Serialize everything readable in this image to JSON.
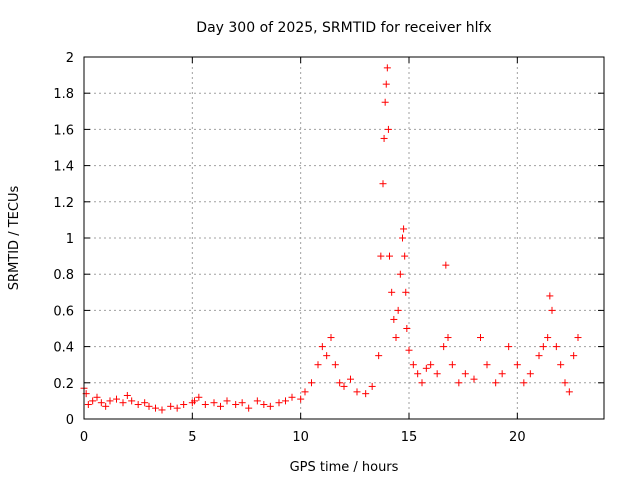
{
  "chart_data": {
    "type": "scatter",
    "title": "Day 300 of 2025, SRMTID for receiver hlfx",
    "xlabel": "GPS time / hours",
    "ylabel": "SRMTID / TECUs",
    "xlim": [
      0,
      24
    ],
    "ylim": [
      0,
      2
    ],
    "x_ticks": [
      0,
      5,
      10,
      15,
      20
    ],
    "x_tick_labels": [
      "0",
      "5",
      "10",
      "15",
      "20"
    ],
    "y_ticks": [
      0,
      0.2,
      0.4,
      0.6,
      0.8,
      1,
      1.2,
      1.4,
      1.6,
      1.8,
      2
    ],
    "y_tick_labels": [
      "0",
      "0.2",
      "0.4",
      "0.6",
      "0.8",
      "1",
      "1.2",
      "1.4",
      "1.6",
      "1.8",
      "2"
    ],
    "grid": true,
    "marker": "+",
    "series": [
      {
        "name": "SRMTID",
        "color": "#ff0000",
        "x": [
          0.0,
          0.1,
          0.2,
          0.4,
          0.6,
          0.8,
          1.0,
          1.2,
          1.5,
          1.8,
          2.0,
          2.2,
          2.5,
          2.8,
          3.0,
          3.3,
          3.6,
          4.0,
          4.3,
          4.6,
          5.0,
          5.1,
          5.3,
          5.6,
          6.0,
          6.3,
          6.6,
          7.0,
          7.3,
          7.6,
          8.0,
          8.3,
          8.6,
          9.0,
          9.3,
          9.6,
          10.0,
          10.2,
          10.5,
          10.8,
          11.0,
          11.2,
          11.4,
          11.6,
          11.8,
          12.0,
          12.3,
          12.6,
          13.0,
          13.3,
          13.6,
          13.7,
          13.8,
          13.85,
          13.9,
          13.95,
          14.0,
          14.05,
          14.1,
          14.2,
          14.3,
          14.4,
          14.5,
          14.6,
          14.7,
          14.75,
          14.8,
          14.85,
          14.9,
          15.0,
          15.2,
          15.4,
          15.6,
          15.8,
          16.0,
          16.3,
          16.6,
          16.7,
          16.8,
          17.0,
          17.3,
          17.6,
          18.0,
          18.3,
          18.6,
          19.0,
          19.3,
          19.6,
          20.0,
          20.3,
          20.6,
          21.0,
          21.2,
          21.4,
          21.5,
          21.6,
          21.8,
          22.0,
          22.2,
          22.4,
          22.6,
          22.8
        ],
        "y": [
          0.17,
          0.14,
          0.08,
          0.1,
          0.12,
          0.09,
          0.07,
          0.1,
          0.11,
          0.09,
          0.13,
          0.1,
          0.08,
          0.09,
          0.07,
          0.06,
          0.05,
          0.07,
          0.06,
          0.08,
          0.09,
          0.1,
          0.12,
          0.08,
          0.09,
          0.07,
          0.1,
          0.08,
          0.09,
          0.06,
          0.1,
          0.08,
          0.07,
          0.09,
          0.1,
          0.12,
          0.11,
          0.15,
          0.2,
          0.3,
          0.4,
          0.35,
          0.45,
          0.3,
          0.2,
          0.18,
          0.22,
          0.15,
          0.14,
          0.18,
          0.35,
          0.9,
          1.3,
          1.55,
          1.75,
          1.85,
          1.94,
          1.6,
          0.9,
          0.7,
          0.55,
          0.45,
          0.6,
          0.8,
          1.0,
          1.05,
          0.9,
          0.7,
          0.5,
          0.38,
          0.3,
          0.25,
          0.2,
          0.28,
          0.3,
          0.25,
          0.4,
          0.85,
          0.45,
          0.3,
          0.2,
          0.25,
          0.22,
          0.45,
          0.3,
          0.2,
          0.25,
          0.4,
          0.3,
          0.2,
          0.25,
          0.35,
          0.4,
          0.45,
          0.68,
          0.6,
          0.4,
          0.3,
          0.2,
          0.15,
          0.35,
          0.45
        ]
      }
    ]
  }
}
